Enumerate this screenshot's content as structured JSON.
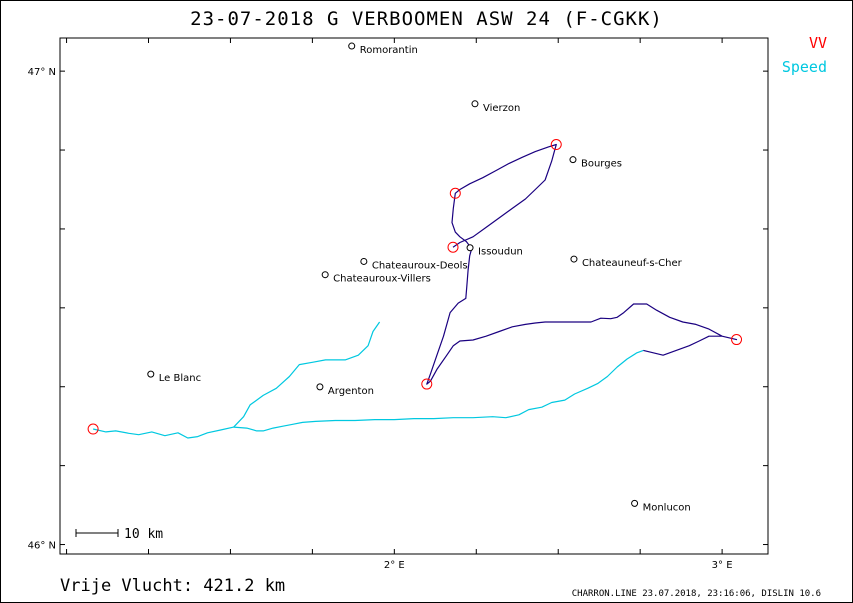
{
  "header": {
    "title": "23-07-2018   G VERBOOMEN   ASW 24 (F-CGKK)"
  },
  "legend": {
    "vv_label": "VV",
    "vv_color": "#ff0000",
    "speed_label": "Speed",
    "speed_color": "#00c8e0",
    "track_color": "#1a0080"
  },
  "summary": {
    "distance": "Vrije Vlucht:  421.2 km"
  },
  "footer": {
    "info": "CHARRON.LINE 23.07.2018, 23:16:06, DISLIN 10.6"
  },
  "scale_bar": {
    "label": "10 km"
  },
  "axes": {
    "x_ticks": [
      {
        "lon": 2.0,
        "label": "2° E"
      },
      {
        "lon": 3.0,
        "label": "3° E"
      }
    ],
    "y_ticks": [
      {
        "lat": 47.0,
        "label": "47° N"
      },
      {
        "lat": 46.0,
        "label": "46° N"
      }
    ],
    "lon_range": [
      0.98,
      3.14
    ],
    "lat_range": [
      45.98,
      47.07
    ]
  },
  "towns": [
    {
      "name": "Romorantin",
      "lon": 1.87,
      "lat": 47.053
    },
    {
      "name": "Vierzon",
      "lon": 2.246,
      "lat": 46.931
    },
    {
      "name": "Bourges",
      "lon": 2.545,
      "lat": 46.813
    },
    {
      "name": "Issoudun",
      "lon": 2.231,
      "lat": 46.627
    },
    {
      "name": "Chateauroux-Deols",
      "lon": 1.907,
      "lat": 46.598
    },
    {
      "name": "Chateauroux-Villers",
      "lon": 1.789,
      "lat": 46.57
    },
    {
      "name": "Chateauneuf-s-Cher",
      "lon": 2.548,
      "lat": 46.603
    },
    {
      "name": "Le Blanc",
      "lon": 1.257,
      "lat": 46.36
    },
    {
      "name": "Argenton",
      "lon": 1.773,
      "lat": 46.333
    },
    {
      "name": "Monlucon",
      "lon": 2.733,
      "lat": 46.087
    }
  ],
  "turnpoints": [
    {
      "lon": 1.081,
      "lat": 46.244
    },
    {
      "lon": 2.179,
      "lat": 46.628
    },
    {
      "lon": 2.494,
      "lat": 46.845
    },
    {
      "lon": 2.186,
      "lat": 46.742
    },
    {
      "lon": 2.099,
      "lat": 46.339
    },
    {
      "lon": 3.044,
      "lat": 46.433
    }
  ],
  "speed_track": [
    [
      1.081,
      46.244
    ],
    [
      1.12,
      46.238
    ],
    [
      1.15,
      46.24
    ],
    [
      1.19,
      46.235
    ],
    [
      1.22,
      46.232
    ],
    [
      1.26,
      46.238
    ],
    [
      1.3,
      46.23
    ],
    [
      1.34,
      46.236
    ],
    [
      1.37,
      46.225
    ],
    [
      1.4,
      46.228
    ],
    [
      1.43,
      46.236
    ],
    [
      1.47,
      46.242
    ],
    [
      1.51,
      46.248
    ],
    [
      1.55,
      46.246
    ],
    [
      1.58,
      46.24
    ],
    [
      1.6,
      46.24
    ],
    [
      1.63,
      46.246
    ],
    [
      1.66,
      46.25
    ],
    [
      1.69,
      46.254
    ],
    [
      1.72,
      46.258
    ],
    [
      1.76,
      46.26
    ],
    [
      1.82,
      46.262
    ],
    [
      1.88,
      46.262
    ],
    [
      1.94,
      46.264
    ],
    [
      2.0,
      46.264
    ],
    [
      2.06,
      46.266
    ],
    [
      2.12,
      46.266
    ],
    [
      2.18,
      46.268
    ],
    [
      2.24,
      46.268
    ],
    [
      2.3,
      46.27
    ],
    [
      2.34,
      46.268
    ],
    [
      2.38,
      46.274
    ],
    [
      2.41,
      46.285
    ],
    [
      2.45,
      46.29
    ],
    [
      2.48,
      46.3
    ],
    [
      2.52,
      46.305
    ],
    [
      2.55,
      46.318
    ],
    [
      2.59,
      46.33
    ],
    [
      2.62,
      46.34
    ],
    [
      2.65,
      46.355
    ],
    [
      2.68,
      46.375
    ],
    [
      2.71,
      46.392
    ],
    [
      2.74,
      46.405
    ],
    [
      2.76,
      46.41
    ]
  ],
  "speed_track_climb": [
    [
      1.51,
      46.248
    ],
    [
      1.54,
      46.27
    ],
    [
      1.56,
      46.295
    ],
    [
      1.6,
      46.315
    ],
    [
      1.64,
      46.33
    ],
    [
      1.68,
      46.355
    ],
    [
      1.71,
      46.38
    ],
    [
      1.75,
      46.385
    ],
    [
      1.79,
      46.39
    ],
    [
      1.85,
      46.39
    ],
    [
      1.89,
      46.4
    ],
    [
      1.92,
      46.42
    ],
    [
      1.935,
      46.45
    ],
    [
      1.955,
      46.47
    ]
  ],
  "flight_track": [
    [
      2.76,
      46.41
    ],
    [
      2.79,
      46.405
    ],
    [
      2.82,
      46.4
    ],
    [
      2.86,
      46.41
    ],
    [
      2.9,
      46.42
    ],
    [
      2.93,
      46.43
    ],
    [
      2.96,
      46.44
    ],
    [
      3.0,
      46.44
    ],
    [
      3.044,
      46.433
    ],
    [
      3.0,
      46.44
    ],
    [
      2.96,
      46.455
    ],
    [
      2.92,
      46.465
    ],
    [
      2.88,
      46.47
    ],
    [
      2.84,
      46.48
    ],
    [
      2.8,
      46.495
    ],
    [
      2.77,
      46.508
    ],
    [
      2.73,
      46.508
    ],
    [
      2.7,
      46.49
    ],
    [
      2.68,
      46.48
    ],
    [
      2.66,
      46.477
    ],
    [
      2.63,
      46.478
    ],
    [
      2.6,
      46.47
    ],
    [
      2.56,
      46.47
    ],
    [
      2.5,
      46.47
    ],
    [
      2.46,
      46.47
    ],
    [
      2.43,
      46.468
    ],
    [
      2.4,
      46.465
    ],
    [
      2.36,
      46.46
    ],
    [
      2.32,
      46.45
    ],
    [
      2.28,
      46.44
    ],
    [
      2.24,
      46.432
    ],
    [
      2.2,
      46.43
    ],
    [
      2.18,
      46.42
    ],
    [
      2.16,
      46.4
    ],
    [
      2.13,
      46.37
    ],
    [
      2.11,
      46.345
    ],
    [
      2.099,
      46.339
    ],
    [
      2.11,
      46.36
    ],
    [
      2.13,
      46.4
    ],
    [
      2.15,
      46.44
    ],
    [
      2.17,
      46.49
    ],
    [
      2.195,
      46.51
    ],
    [
      2.218,
      46.52
    ],
    [
      2.221,
      46.545
    ],
    [
      2.225,
      46.58
    ],
    [
      2.23,
      46.61
    ],
    [
      2.236,
      46.625
    ],
    [
      2.22,
      46.64
    ],
    [
      2.2,
      46.65
    ],
    [
      2.186,
      46.66
    ],
    [
      2.176,
      46.68
    ],
    [
      2.18,
      46.71
    ],
    [
      2.186,
      46.742
    ],
    [
      2.2,
      46.75
    ],
    [
      2.23,
      46.762
    ],
    [
      2.27,
      46.775
    ],
    [
      2.31,
      46.79
    ],
    [
      2.35,
      46.805
    ],
    [
      2.39,
      46.818
    ],
    [
      2.43,
      46.83
    ],
    [
      2.47,
      46.84
    ],
    [
      2.494,
      46.845
    ],
    [
      2.488,
      46.83
    ],
    [
      2.48,
      46.81
    ],
    [
      2.47,
      46.79
    ],
    [
      2.46,
      46.77
    ],
    [
      2.43,
      46.75
    ],
    [
      2.4,
      46.73
    ],
    [
      2.36,
      46.71
    ],
    [
      2.32,
      46.69
    ],
    [
      2.28,
      46.67
    ],
    [
      2.24,
      46.65
    ],
    [
      2.2,
      46.638
    ],
    [
      2.179,
      46.628
    ]
  ]
}
